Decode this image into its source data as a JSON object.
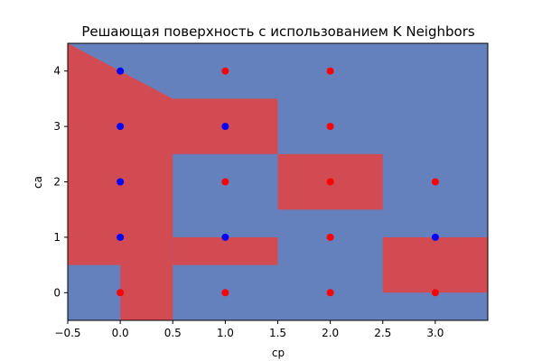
{
  "chart_data": {
    "type": "scatter",
    "title": "Решающая поверхность с использованием K Neighbors",
    "xlabel": "cp",
    "ylabel": "ca",
    "xlim": [
      -0.5,
      3.5
    ],
    "ylim": [
      -0.5,
      4.5
    ],
    "x_ticks": [
      -0.5,
      0.0,
      0.5,
      1.0,
      1.5,
      2.0,
      2.5,
      3.0
    ],
    "x_tick_labels": [
      "−0.5",
      "0.0",
      "0.5",
      "1.0",
      "1.5",
      "2.0",
      "2.5",
      "3.0"
    ],
    "y_ticks": [
      0,
      1,
      2,
      3,
      4
    ],
    "y_tick_labels": [
      "0",
      "1",
      "2",
      "3",
      "4"
    ],
    "grid": false,
    "colors": {
      "region_class_0": "#6581bd",
      "region_class_1": "#d24b53",
      "point_class_0": "#0000ff",
      "point_class_1": "#ff0000"
    },
    "background_region_class": 0,
    "regions_class_1": [
      [
        [
          -0.5,
          4.5
        ],
        [
          0.0,
          4.0
        ],
        [
          0.5,
          3.5
        ],
        [
          1.5,
          3.5
        ],
        [
          1.5,
          2.5
        ],
        [
          0.5,
          2.5
        ],
        [
          0.5,
          -0.5
        ],
        [
          0.0,
          -0.5
        ],
        [
          0.0,
          0.5
        ],
        [
          -0.5,
          0.5
        ]
      ],
      [
        [
          0.5,
          1.0
        ],
        [
          1.5,
          1.0
        ],
        [
          1.5,
          0.5
        ],
        [
          0.5,
          0.5
        ]
      ],
      [
        [
          1.5,
          2.5
        ],
        [
          2.5,
          2.5
        ],
        [
          2.5,
          1.5
        ],
        [
          1.5,
          1.5
        ]
      ],
      [
        [
          2.5,
          1.0
        ],
        [
          3.5,
          1.0
        ],
        [
          3.5,
          0.0
        ],
        [
          2.5,
          0.0
        ]
      ]
    ],
    "points": [
      {
        "x": 0,
        "y": 4,
        "class": 0
      },
      {
        "x": 0,
        "y": 3,
        "class": 0
      },
      {
        "x": 0,
        "y": 2,
        "class": 0
      },
      {
        "x": 0,
        "y": 1,
        "class": 0
      },
      {
        "x": 0,
        "y": 0,
        "class": 1
      },
      {
        "x": 1,
        "y": 4,
        "class": 1
      },
      {
        "x": 1,
        "y": 3,
        "class": 0
      },
      {
        "x": 1,
        "y": 2,
        "class": 1
      },
      {
        "x": 1,
        "y": 1,
        "class": 0
      },
      {
        "x": 1,
        "y": 0,
        "class": 1
      },
      {
        "x": 2,
        "y": 4,
        "class": 1
      },
      {
        "x": 2,
        "y": 3,
        "class": 1
      },
      {
        "x": 2,
        "y": 2,
        "class": 1
      },
      {
        "x": 2,
        "y": 1,
        "class": 1
      },
      {
        "x": 2,
        "y": 0,
        "class": 1
      },
      {
        "x": 3,
        "y": 2,
        "class": 1
      },
      {
        "x": 3,
        "y": 1,
        "class": 0
      },
      {
        "x": 3,
        "y": 0,
        "class": 1
      }
    ]
  }
}
